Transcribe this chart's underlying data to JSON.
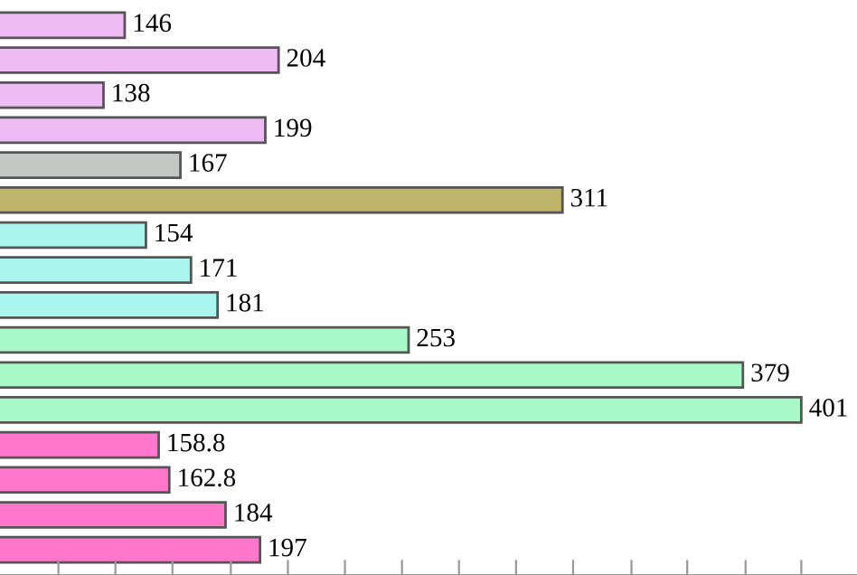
{
  "chart_data": {
    "type": "bar",
    "orientation": "horizontal",
    "categories": [
      null,
      null,
      null,
      null,
      null,
      null,
      null,
      null,
      null,
      null,
      null,
      null,
      null,
      null,
      null,
      null
    ],
    "values": [
      146,
      204,
      138,
      199,
      167,
      311,
      154,
      171,
      181,
      253,
      379,
      401,
      158.8,
      162.8,
      184,
      197
    ],
    "colors": [
      "#eebbf5",
      "#eebbf5",
      "#eebbf5",
      "#eebbf5",
      "#c4c8c4",
      "#bfb56a",
      "#aaf5ee",
      "#aaf5ee",
      "#aaf5ee",
      "#a8f8c8",
      "#a8f8c8",
      "#a8f8c8",
      "#ff77cc",
      "#ff77cc",
      "#ff77cc",
      "#ff77cc"
    ],
    "xlim": [
      99,
      422
    ],
    "xticks": [
      {
        "value": 121,
        "label": null
      },
      {
        "value": 142.5,
        "label": null
      },
      {
        "value": 164,
        "label": null
      },
      {
        "value": 186,
        "label": null
      },
      {
        "value": 207.5,
        "label": null
      },
      {
        "value": 229,
        "label": null
      },
      {
        "value": 250.5,
        "label": null
      },
      {
        "value": 272,
        "label": null
      },
      {
        "value": 293.5,
        "label": null
      },
      {
        "value": 315,
        "label": null
      },
      {
        "value": 337,
        "label": null
      },
      {
        "value": 358,
        "label": null
      },
      {
        "value": 380,
        "label": null
      },
      {
        "value": 401,
        "label": null
      }
    ],
    "data_labels": true,
    "grid": false,
    "legend": false
  }
}
